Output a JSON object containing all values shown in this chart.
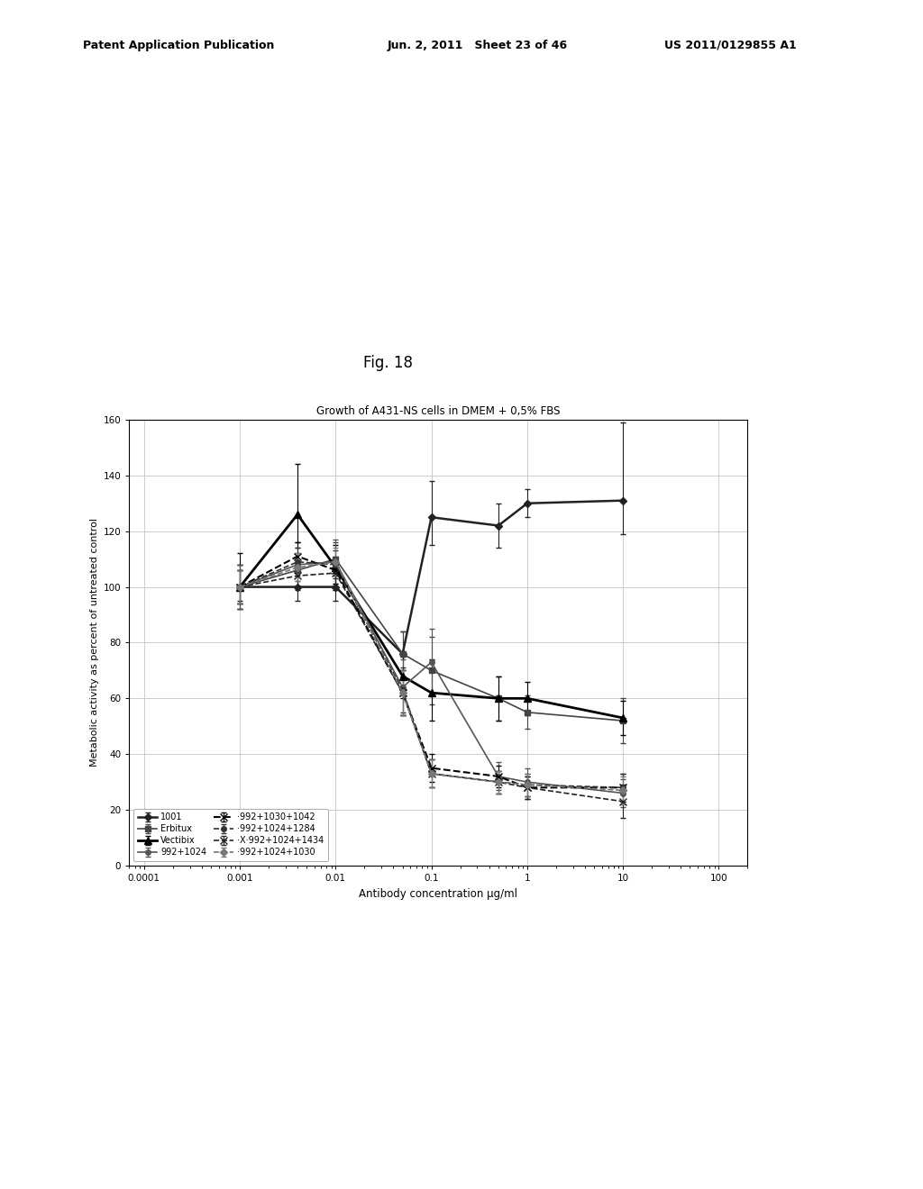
{
  "title": "Growth of A431-NS cells in DMEM + 0,5% FBS",
  "xlabel": "Antibody concentration µg/ml",
  "ylabel": "Metabolic activity as percent of untreated control",
  "fig_label": "Fig. 18",
  "patent_left": "Patent Application Publication",
  "patent_mid": "Jun. 2, 2011   Sheet 23 of 46",
  "patent_right": "US 2011/0129855 A1",
  "ylim": [
    0,
    160
  ],
  "yticks": [
    0,
    20,
    40,
    60,
    80,
    100,
    120,
    140,
    160
  ],
  "xticks": [
    0.0001,
    0.001,
    0.01,
    0.1,
    1,
    10,
    100
  ],
  "xtick_labels": [
    "0.0001",
    "0.001",
    "0.01",
    "0.1",
    "1",
    "10",
    "100"
  ],
  "series_order": [
    "1001",
    "Erbitux",
    "Vectibix",
    "992+1024",
    "992+1030+1042",
    "992+1024+1284",
    "992+1024+1434",
    "992+1024+1030"
  ],
  "series": {
    "1001": {
      "x": [
        0.001,
        0.004,
        0.01,
        0.05,
        0.1,
        0.5,
        1,
        10
      ],
      "y": [
        100,
        100,
        100,
        76,
        125,
        122,
        130,
        131
      ],
      "yerr_lo": [
        5,
        5,
        5,
        8,
        10,
        8,
        5,
        12
      ],
      "yerr_hi": [
        8,
        5,
        5,
        8,
        13,
        8,
        5,
        28
      ],
      "color": "#222222",
      "linestyle": "-",
      "marker": "D",
      "markersize": 4,
      "linewidth": 1.8,
      "label": "1001"
    },
    "Erbitux": {
      "x": [
        0.001,
        0.004,
        0.01,
        0.05,
        0.1,
        0.5,
        1,
        10
      ],
      "y": [
        100,
        106,
        110,
        76,
        70,
        60,
        55,
        52
      ],
      "yerr_lo": [
        8,
        6,
        6,
        8,
        12,
        8,
        6,
        8
      ],
      "yerr_hi": [
        8,
        6,
        6,
        8,
        12,
        8,
        6,
        8
      ],
      "color": "#444444",
      "linestyle": "-",
      "marker": "s",
      "markersize": 4,
      "linewidth": 1.2,
      "label": "Erbitux"
    },
    "Vectibix": {
      "x": [
        0.001,
        0.004,
        0.01,
        0.05,
        0.1,
        0.5,
        1,
        10
      ],
      "y": [
        100,
        126,
        107,
        68,
        62,
        60,
        60,
        53
      ],
      "yerr_lo": [
        8,
        10,
        8,
        8,
        10,
        8,
        6,
        6
      ],
      "yerr_hi": [
        12,
        18,
        8,
        8,
        12,
        8,
        6,
        6
      ],
      "color": "#000000",
      "linestyle": "-",
      "marker": "^",
      "markersize": 6,
      "linewidth": 2.0,
      "label": "Vectibix"
    },
    "992+1024": {
      "x": [
        0.001,
        0.004,
        0.01,
        0.05,
        0.1,
        0.5,
        1,
        10
      ],
      "y": [
        100,
        108,
        109,
        64,
        73,
        32,
        30,
        26
      ],
      "yerr_lo": [
        8,
        6,
        8,
        10,
        12,
        5,
        5,
        5
      ],
      "yerr_hi": [
        8,
        6,
        8,
        10,
        12,
        5,
        5,
        5
      ],
      "color": "#555555",
      "linestyle": "-",
      "marker": "o",
      "markersize": 4,
      "linewidth": 1.2,
      "label": "992+1024"
    },
    "992+1030+1042": {
      "x": [
        0.001,
        0.004,
        0.01,
        0.05,
        0.1,
        0.5,
        1,
        10
      ],
      "y": [
        100,
        111,
        106,
        62,
        35,
        32,
        28,
        28
      ],
      "yerr_lo": [
        6,
        5,
        5,
        8,
        5,
        4,
        4,
        5
      ],
      "yerr_hi": [
        6,
        5,
        5,
        8,
        5,
        4,
        4,
        5
      ],
      "color": "#000000",
      "linestyle": "--",
      "marker": "x",
      "markersize": 6,
      "linewidth": 1.5,
      "label": "·992+1030+1042"
    },
    "992+1024+1284": {
      "x": [
        0.001,
        0.004,
        0.01,
        0.05,
        0.1,
        0.5,
        1,
        10
      ],
      "y": [
        100,
        109,
        108,
        63,
        33,
        30,
        29,
        28
      ],
      "yerr_lo": [
        6,
        5,
        5,
        8,
        5,
        4,
        4,
        5
      ],
      "yerr_hi": [
        6,
        5,
        5,
        8,
        5,
        4,
        4,
        5
      ],
      "color": "#333333",
      "linestyle": "--",
      "marker": "o",
      "markersize": 4,
      "linewidth": 1.2,
      "label": "·992+1024+1284"
    },
    "992+1024+1434": {
      "x": [
        0.001,
        0.004,
        0.01,
        0.05,
        0.1,
        0.5,
        1,
        10
      ],
      "y": [
        100,
        104,
        105,
        62,
        33,
        30,
        28,
        23
      ],
      "yerr_lo": [
        6,
        5,
        5,
        8,
        5,
        4,
        4,
        6
      ],
      "yerr_hi": [
        6,
        5,
        5,
        8,
        5,
        4,
        4,
        6
      ],
      "color": "#222222",
      "linestyle": "--",
      "marker": "x",
      "markersize": 6,
      "linewidth": 1.2,
      "label": "·X·992+1024+1434"
    },
    "992+1024+1030": {
      "x": [
        0.001,
        0.004,
        0.01,
        0.05,
        0.1,
        0.5,
        1,
        10
      ],
      "y": [
        100,
        107,
        109,
        62,
        33,
        30,
        29,
        27
      ],
      "yerr_lo": [
        6,
        5,
        5,
        8,
        5,
        4,
        4,
        5
      ],
      "yerr_hi": [
        6,
        5,
        5,
        8,
        5,
        4,
        4,
        5
      ],
      "color": "#777777",
      "linestyle": "--",
      "marker": "D",
      "markersize": 4,
      "linewidth": 1.2,
      "label": "·992+1024+1030"
    }
  },
  "legend_pairs": [
    [
      "1001",
      "Erbitux"
    ],
    [
      "Vectibix",
      "992+1024"
    ],
    [
      "992+1030+1042",
      "992+1024+1284"
    ],
    [
      "992+1024+1434",
      "992+1024+1030"
    ]
  ]
}
